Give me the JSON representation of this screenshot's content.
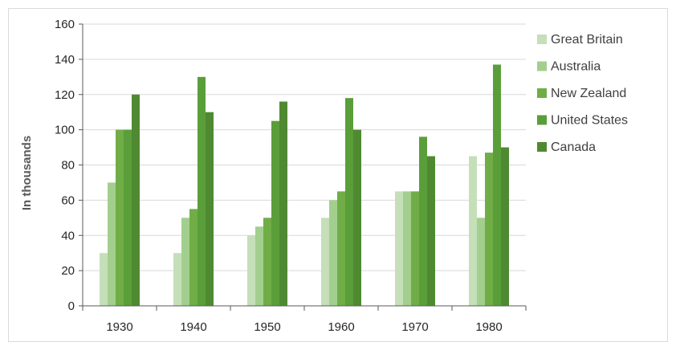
{
  "chart_data": {
    "type": "bar",
    "title": "",
    "xlabel": "",
    "ylabel": "In thousands",
    "categories": [
      "1930",
      "1940",
      "1950",
      "1960",
      "1970",
      "1980"
    ],
    "ylim": [
      0,
      160
    ],
    "yticks": [
      0,
      20,
      40,
      60,
      80,
      100,
      120,
      140,
      160
    ],
    "grid": true,
    "legend_position": "right",
    "series": [
      {
        "name": "Great Britain",
        "color": "#c5dfb9",
        "values": [
          30,
          30,
          40,
          50,
          65,
          85
        ]
      },
      {
        "name": "Australia",
        "color": "#a2cf8e",
        "values": [
          70,
          50,
          45,
          60,
          65,
          50
        ]
      },
      {
        "name": "New Zealand",
        "color": "#70ad47",
        "values": [
          100,
          55,
          50,
          65,
          65,
          87
        ]
      },
      {
        "name": "United States",
        "color": "#5a9e3a",
        "values": [
          100,
          130,
          105,
          118,
          96,
          137
        ]
      },
      {
        "name": "Canada",
        "color": "#4f8a32",
        "values": [
          120,
          110,
          116,
          100,
          85,
          90
        ]
      }
    ]
  }
}
